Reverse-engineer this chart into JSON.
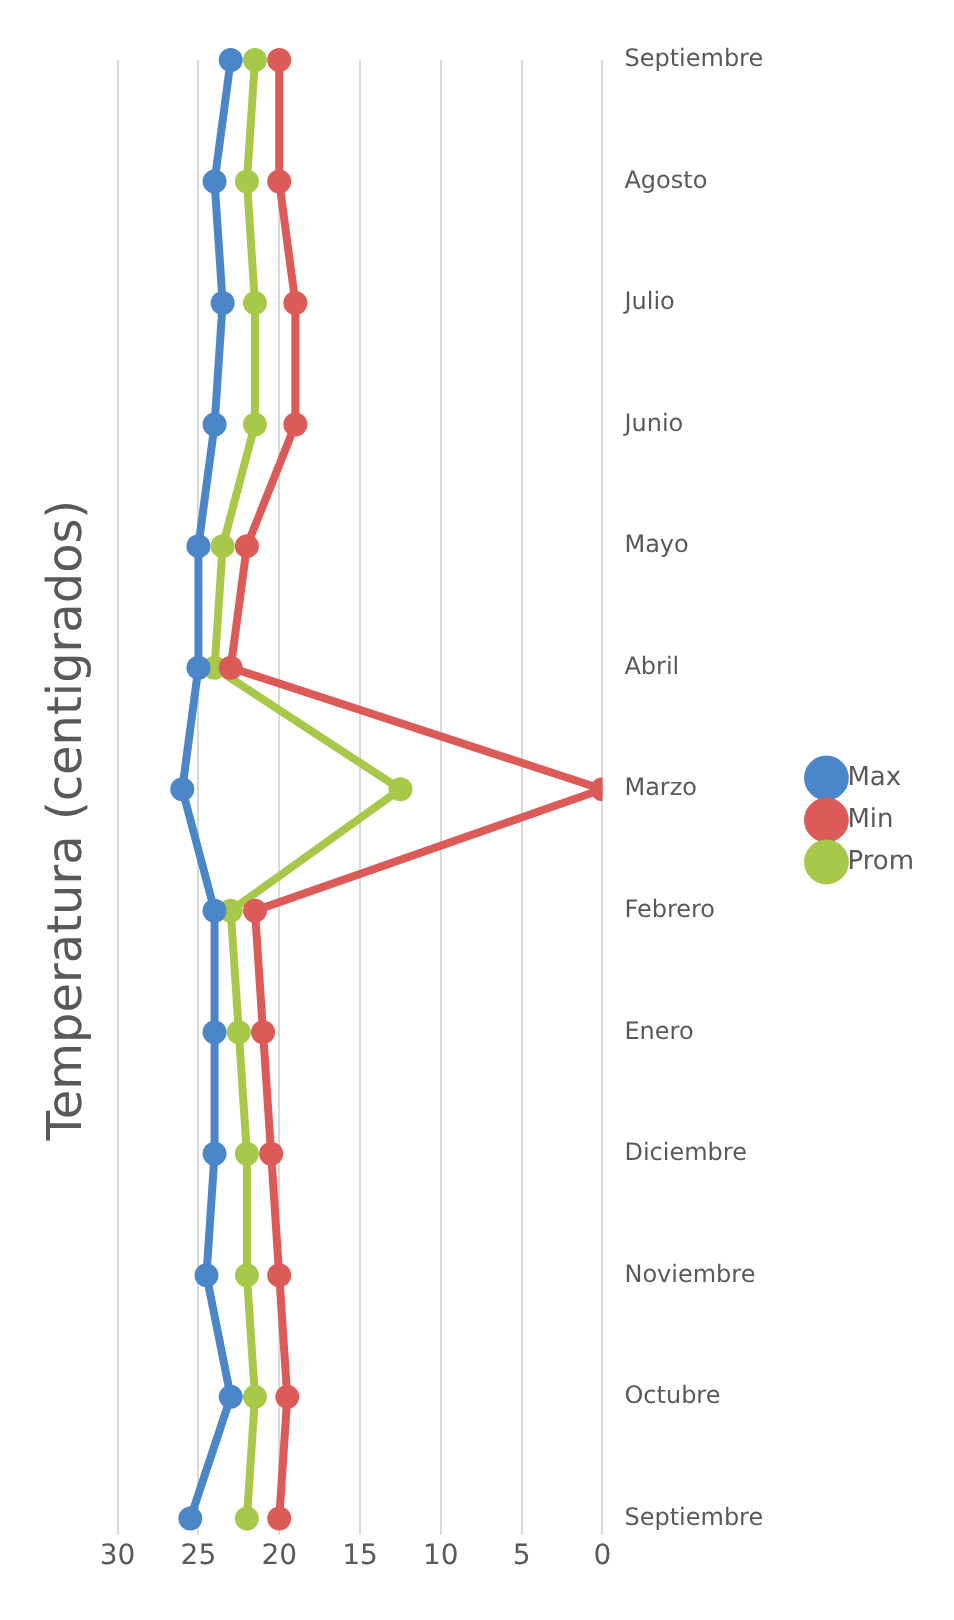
{
  "chart_data": {
    "type": "line",
    "title": "Temperatura (centigrados)",
    "orientation": "horizontal",
    "categories": [
      "Septiembre",
      "Agosto",
      "Julio",
      "Junio",
      "Mayo",
      "Abril",
      "Marzo",
      "Febrero",
      "Enero",
      "Diciembre",
      "Noviembre",
      "Octubre",
      "Septiembre"
    ],
    "series": [
      {
        "name": "Max",
        "color": "#4a86c8",
        "values": [
          23,
          24,
          23.5,
          24,
          25,
          25,
          26,
          24,
          24,
          24,
          24.5,
          23,
          25.5
        ]
      },
      {
        "name": "Min",
        "color": "#dc5a57",
        "values": [
          20,
          20,
          19,
          19,
          22,
          23,
          0,
          21.5,
          21,
          20.5,
          20,
          19.5,
          20
        ]
      },
      {
        "name": "Prom",
        "color": "#a8c84a",
        "values": [
          21.5,
          22,
          21.5,
          21.5,
          23.5,
          24,
          12.5,
          23,
          22.5,
          22,
          22,
          21.5,
          22
        ]
      }
    ],
    "xlim": [
      30,
      0
    ],
    "xticks": [
      30,
      25,
      20,
      15,
      10,
      5,
      0
    ],
    "grid": "x",
    "legend": "right",
    "marker": "circle",
    "line_style": "solid"
  }
}
